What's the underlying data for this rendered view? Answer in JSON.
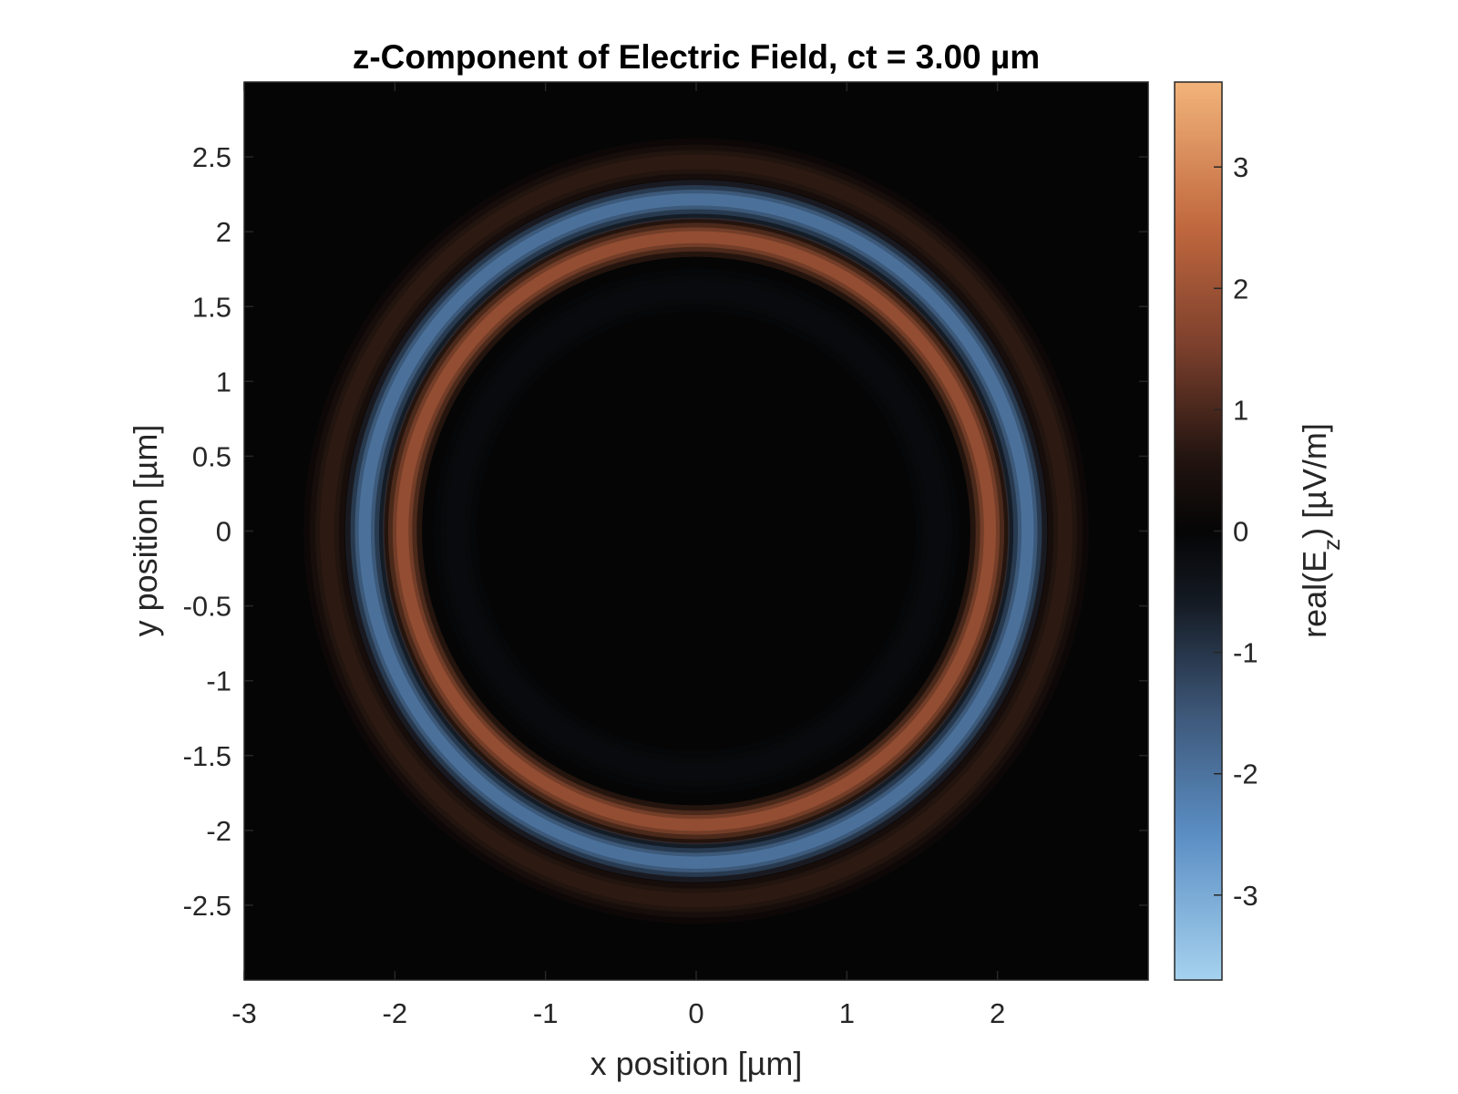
{
  "chart_data": {
    "type": "heatmap",
    "title": "z-Component of Electric Field, ct = 3.00 µm",
    "xlabel": "x position [µm]",
    "ylabel": "y position [µm]",
    "colorbar_label": {
      "prefix": "real(E",
      "sub": "z",
      "suffix": ") [µV/m]"
    },
    "xlim": [
      -3,
      3
    ],
    "ylim": [
      -3,
      3
    ],
    "xticks": [
      -3,
      -2,
      -1,
      0,
      1,
      2
    ],
    "xtick_labels": [
      "-3",
      "-2",
      "-1",
      "0",
      "1",
      "2"
    ],
    "yticks": [
      2.5,
      2,
      1.5,
      1,
      0.5,
      0,
      -0.5,
      -1,
      -1.5,
      -2,
      -2.5
    ],
    "ytick_labels": [
      "2.5",
      "2",
      "1.5",
      "1",
      "0.5",
      "0",
      "-0.5",
      "-1",
      "-1.5",
      "-2",
      "-2.5"
    ],
    "clim": [
      -3.7,
      3.7
    ],
    "cticks": [
      3,
      2,
      1,
      0,
      -1,
      -2,
      -3
    ],
    "ctick_labels": [
      "3",
      "2",
      "1",
      "0",
      "-1",
      "-2",
      "-3"
    ],
    "rings": [
      {
        "radius": 1.6,
        "width": 0.15,
        "value": -0.15,
        "label": "faint inner negative ring"
      },
      {
        "radius": 1.95,
        "width": 0.1,
        "value": 1.9,
        "label": "positive ring"
      },
      {
        "radius": 2.2,
        "width": 0.1,
        "value": -2.0,
        "label": "negative ring"
      },
      {
        "radius": 2.45,
        "width": 0.12,
        "value": 0.7,
        "label": "faint outer positive ring"
      }
    ],
    "colormap": [
      {
        "value": -3.7,
        "color": "#a6d2ee"
      },
      {
        "value": -2.5,
        "color": "#5b8ec4"
      },
      {
        "value": -1.5,
        "color": "#3d5778"
      },
      {
        "value": -0.6,
        "color": "#151b24"
      },
      {
        "value": 0,
        "color": "#050505"
      },
      {
        "value": 0.6,
        "color": "#221410"
      },
      {
        "value": 1.5,
        "color": "#7a3f2c"
      },
      {
        "value": 2.5,
        "color": "#c0673e"
      },
      {
        "value": 3.7,
        "color": "#f2b47a"
      }
    ]
  }
}
